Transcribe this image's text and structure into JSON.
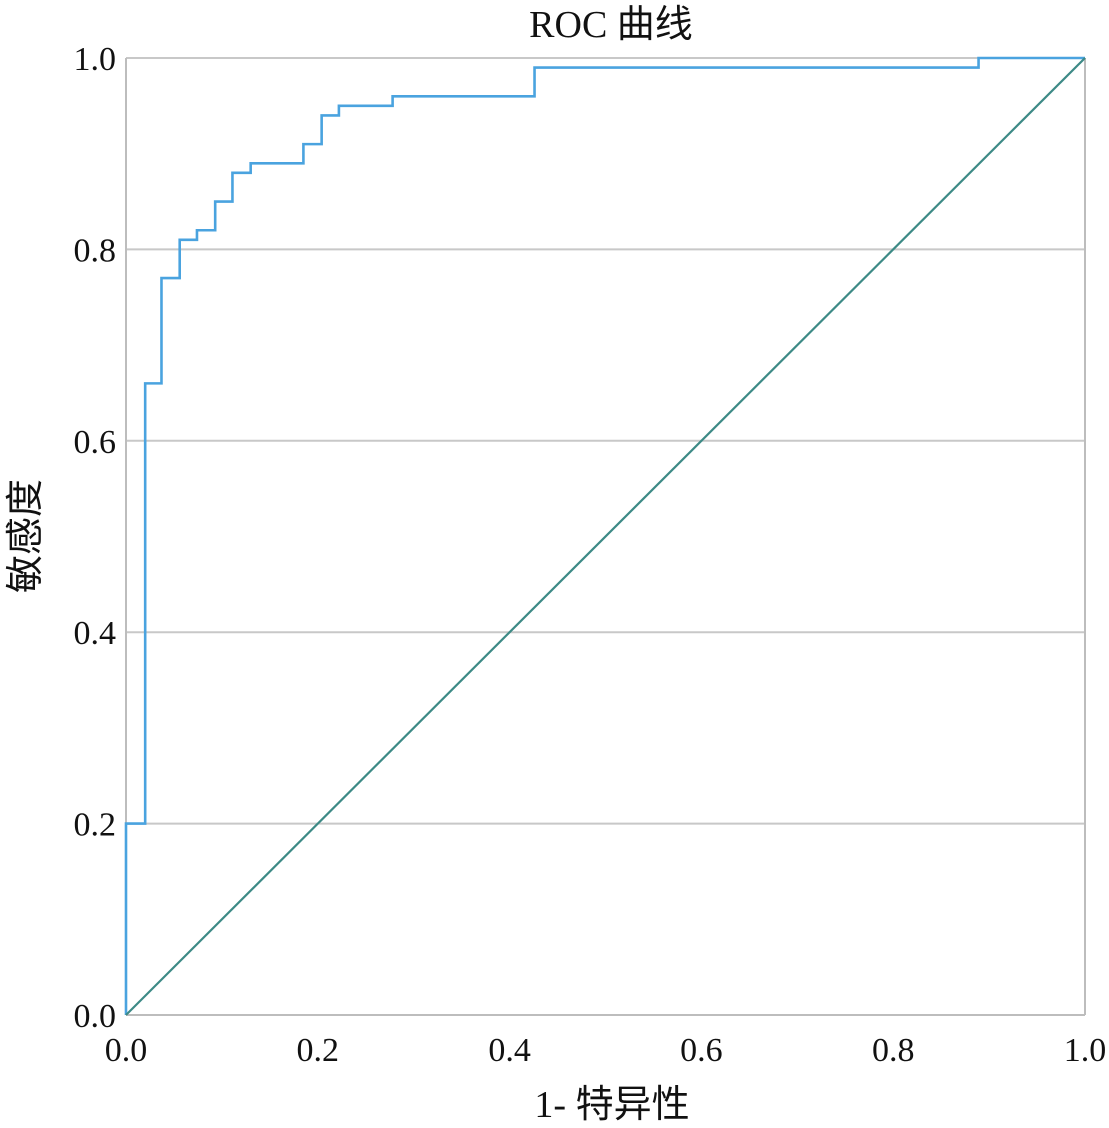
{
  "chart_data": {
    "type": "line",
    "title": "ROC 曲线",
    "xlabel": "1- 特异性",
    "ylabel": "敏感度",
    "xlim": [
      0,
      1
    ],
    "ylim": [
      0,
      1
    ],
    "x_ticks": [
      "0.0",
      "0.2",
      "0.4",
      "0.6",
      "0.8",
      "1.0"
    ],
    "y_ticks": [
      "0.0",
      "0.2",
      "0.4",
      "0.6",
      "0.8",
      "1.0"
    ],
    "grid": "horizontal",
    "series": [
      {
        "color": "#4aa3df",
        "style": "step",
        "x": [
          0.0,
          0.0,
          0.02,
          0.02,
          0.037,
          0.037,
          0.056,
          0.056,
          0.074,
          0.074,
          0.093,
          0.093,
          0.111,
          0.111,
          0.13,
          0.13,
          0.185,
          0.185,
          0.204,
          0.204,
          0.222,
          0.222,
          0.278,
          0.278,
          0.426,
          0.426,
          0.889,
          0.889,
          1.0
        ],
        "y": [
          0.0,
          0.2,
          0.2,
          0.66,
          0.66,
          0.77,
          0.77,
          0.81,
          0.81,
          0.82,
          0.82,
          0.85,
          0.85,
          0.88,
          0.88,
          0.89,
          0.89,
          0.91,
          0.91,
          0.94,
          0.94,
          0.95,
          0.95,
          0.96,
          0.96,
          0.99,
          0.99,
          1.0,
          1.0
        ]
      },
      {
        "color": "#3d8a86",
        "style": "reference",
        "x": [
          0.0,
          1.0
        ],
        "y": [
          0.0,
          1.0
        ]
      }
    ]
  }
}
